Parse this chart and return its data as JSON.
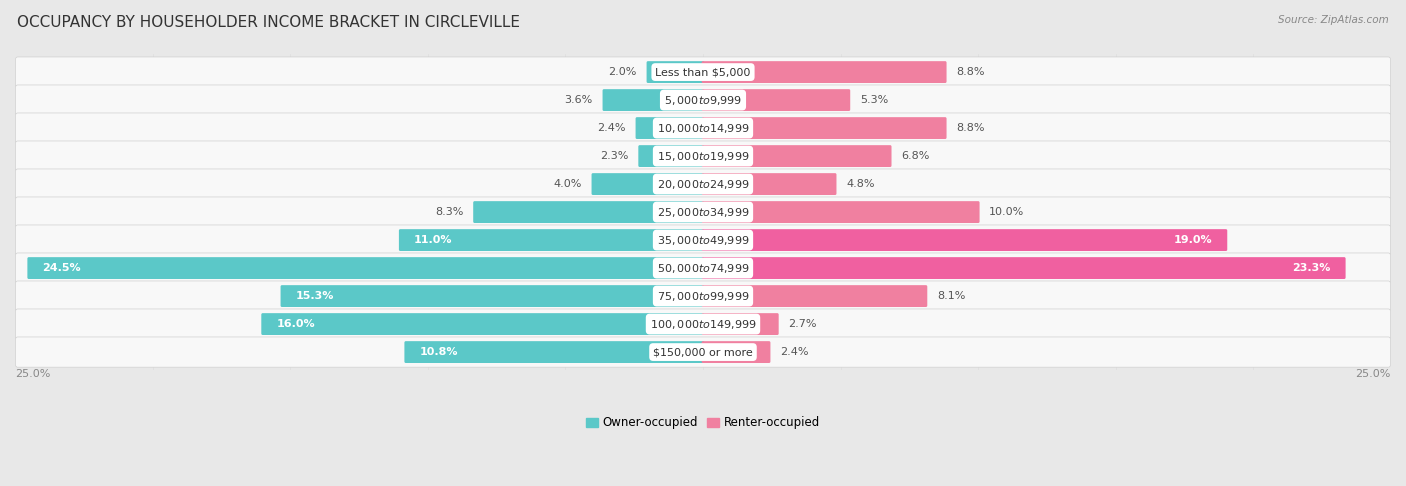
{
  "title": "OCCUPANCY BY HOUSEHOLDER INCOME BRACKET IN CIRCLEVILLE",
  "source": "Source: ZipAtlas.com",
  "categories": [
    "Less than $5,000",
    "$5,000 to $9,999",
    "$10,000 to $14,999",
    "$15,000 to $19,999",
    "$20,000 to $24,999",
    "$25,000 to $34,999",
    "$35,000 to $49,999",
    "$50,000 to $74,999",
    "$75,000 to $99,999",
    "$100,000 to $149,999",
    "$150,000 or more"
  ],
  "owner_values": [
    2.0,
    3.6,
    2.4,
    2.3,
    4.0,
    8.3,
    11.0,
    24.5,
    15.3,
    16.0,
    10.8
  ],
  "renter_values": [
    8.8,
    5.3,
    8.8,
    6.8,
    4.8,
    10.0,
    19.0,
    23.3,
    8.1,
    2.7,
    2.4
  ],
  "owner_color": "#5BC8C8",
  "renter_color": "#F080A0",
  "renter_color_bright": "#F060A0",
  "bar_height": 0.68,
  "xlim": 25.0,
  "bg_color": "#e8e8e8",
  "row_bg_color": "#f5f5f5",
  "row_alt_bg": "#ececec",
  "title_fontsize": 11,
  "label_fontsize": 8,
  "category_fontsize": 8,
  "legend_fontsize": 8.5,
  "source_fontsize": 7.5,
  "inside_label_threshold_owner": 10.0,
  "inside_label_threshold_renter": 15.0
}
